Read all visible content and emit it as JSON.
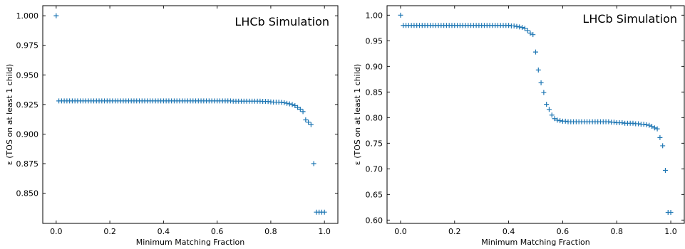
{
  "figure": {
    "marker_color": "#1f77b4",
    "frame_color": "#000000"
  },
  "chart_data": [
    {
      "type": "scatter",
      "marker": "plus",
      "annotation": "LHCb Simulation",
      "xlabel": "Minimum Matching Fraction",
      "ylabel": "ε (TOS on at least 1 child)",
      "xlim": [
        -0.05,
        1.05
      ],
      "ylim": [
        0.8245,
        1.0085
      ],
      "xticks": [
        0.0,
        0.2,
        0.4,
        0.6,
        0.8,
        1.0
      ],
      "xtick_labels": [
        "0.0",
        "0.2",
        "0.4",
        "0.6",
        "0.8",
        "1.0"
      ],
      "yticks": [
        0.85,
        0.875,
        0.9,
        0.925,
        0.95,
        0.975,
        1.0
      ],
      "ytick_labels": [
        "0.850",
        "0.875",
        "0.900",
        "0.925",
        "0.950",
        "0.975",
        "1.000"
      ],
      "grid": false,
      "series": [
        {
          "x": [
            0,
            0.01,
            0.02,
            0.03,
            0.04,
            0.05,
            0.06,
            0.07,
            0.08,
            0.09,
            0.1,
            0.11,
            0.12,
            0.13,
            0.14,
            0.15,
            0.16,
            0.17,
            0.18,
            0.19,
            0.2,
            0.21,
            0.22,
            0.23,
            0.24,
            0.25,
            0.26,
            0.27,
            0.28,
            0.29,
            0.3,
            0.31,
            0.32,
            0.33,
            0.34,
            0.35,
            0.36,
            0.37,
            0.38,
            0.39,
            0.4,
            0.41,
            0.42,
            0.43,
            0.44,
            0.45,
            0.46,
            0.47,
            0.48,
            0.49,
            0.5,
            0.51,
            0.52,
            0.53,
            0.54,
            0.55,
            0.56,
            0.57,
            0.58,
            0.59,
            0.6,
            0.61,
            0.62,
            0.63,
            0.64,
            0.65,
            0.66,
            0.67,
            0.68,
            0.69,
            0.7,
            0.71,
            0.72,
            0.73,
            0.74,
            0.75,
            0.76,
            0.77,
            0.78,
            0.79,
            0.8,
            0.81,
            0.82,
            0.83,
            0.84,
            0.85,
            0.86,
            0.87,
            0.88,
            0.89,
            0.9,
            0.91,
            0.92,
            0.93,
            0.94,
            0.95,
            0.96,
            0.97,
            0.98,
            0.99,
            1.0
          ],
          "y": [
            1.0,
            0.928,
            0.928,
            0.928,
            0.928,
            0.928,
            0.928,
            0.928,
            0.928,
            0.928,
            0.928,
            0.928,
            0.928,
            0.928,
            0.928,
            0.928,
            0.928,
            0.928,
            0.928,
            0.928,
            0.928,
            0.928,
            0.928,
            0.928,
            0.928,
            0.928,
            0.928,
            0.928,
            0.928,
            0.928,
            0.928,
            0.928,
            0.928,
            0.928,
            0.928,
            0.928,
            0.928,
            0.928,
            0.928,
            0.928,
            0.928,
            0.928,
            0.928,
            0.928,
            0.928,
            0.928,
            0.928,
            0.928,
            0.928,
            0.928,
            0.928,
            0.928,
            0.928,
            0.928,
            0.928,
            0.928,
            0.928,
            0.928,
            0.928,
            0.928,
            0.928,
            0.928,
            0.928,
            0.928,
            0.928,
            0.928,
            0.9278,
            0.9278,
            0.9278,
            0.9278,
            0.9278,
            0.9278,
            0.9278,
            0.9278,
            0.9278,
            0.9278,
            0.9278,
            0.9276,
            0.9276,
            0.9275,
            0.9272,
            0.927,
            0.927,
            0.927,
            0.9268,
            0.9265,
            0.926,
            0.9255,
            0.925,
            0.924,
            0.9225,
            0.921,
            0.919,
            0.912,
            0.91,
            0.908,
            0.875,
            0.834,
            0.834,
            0.834,
            0.834
          ]
        }
      ]
    },
    {
      "type": "scatter",
      "marker": "plus",
      "annotation": "LHCb Simulation",
      "xlabel": "Minimum Matching Fraction",
      "ylabel": "ε (TOS on at least 1 child)",
      "xlim": [
        -0.05,
        1.05
      ],
      "ylim": [
        0.5935,
        1.0185
      ],
      "xticks": [
        0.0,
        0.2,
        0.4,
        0.6,
        0.8,
        1.0
      ],
      "xtick_labels": [
        "0.0",
        "0.2",
        "0.4",
        "0.6",
        "0.8",
        "1.0"
      ],
      "yticks": [
        0.6,
        0.65,
        0.7,
        0.75,
        0.8,
        0.85,
        0.9,
        0.95,
        1.0
      ],
      "ytick_labels": [
        "0.60",
        "0.65",
        "0.70",
        "0.75",
        "0.80",
        "0.85",
        "0.90",
        "0.95",
        "1.00"
      ],
      "grid": false,
      "series": [
        {
          "x": [
            0,
            0.01,
            0.02,
            0.03,
            0.04,
            0.05,
            0.06,
            0.07,
            0.08,
            0.09,
            0.1,
            0.11,
            0.12,
            0.13,
            0.14,
            0.15,
            0.16,
            0.17,
            0.18,
            0.19,
            0.2,
            0.21,
            0.22,
            0.23,
            0.24,
            0.25,
            0.26,
            0.27,
            0.28,
            0.29,
            0.3,
            0.31,
            0.32,
            0.33,
            0.34,
            0.35,
            0.36,
            0.37,
            0.38,
            0.39,
            0.4,
            0.41,
            0.42,
            0.43,
            0.44,
            0.45,
            0.46,
            0.47,
            0.48,
            0.49,
            0.5,
            0.51,
            0.52,
            0.53,
            0.54,
            0.55,
            0.56,
            0.57,
            0.58,
            0.59,
            0.6,
            0.61,
            0.62,
            0.63,
            0.64,
            0.65,
            0.66,
            0.67,
            0.68,
            0.69,
            0.7,
            0.71,
            0.72,
            0.73,
            0.74,
            0.75,
            0.76,
            0.77,
            0.78,
            0.79,
            0.8,
            0.81,
            0.82,
            0.83,
            0.84,
            0.85,
            0.86,
            0.87,
            0.88,
            0.89,
            0.9,
            0.91,
            0.92,
            0.93,
            0.94,
            0.95,
            0.96,
            0.97,
            0.98,
            0.99,
            1.0
          ],
          "y": [
            1.0,
            0.98,
            0.98,
            0.98,
            0.98,
            0.98,
            0.98,
            0.98,
            0.98,
            0.98,
            0.98,
            0.98,
            0.98,
            0.98,
            0.98,
            0.98,
            0.98,
            0.98,
            0.98,
            0.98,
            0.98,
            0.98,
            0.98,
            0.98,
            0.98,
            0.98,
            0.98,
            0.98,
            0.98,
            0.98,
            0.98,
            0.98,
            0.98,
            0.98,
            0.98,
            0.98,
            0.98,
            0.98,
            0.98,
            0.98,
            0.98,
            0.979,
            0.979,
            0.978,
            0.977,
            0.976,
            0.974,
            0.97,
            0.965,
            0.962,
            0.928,
            0.893,
            0.868,
            0.849,
            0.826,
            0.816,
            0.805,
            0.798,
            0.795,
            0.794,
            0.793,
            0.793,
            0.792,
            0.792,
            0.792,
            0.792,
            0.792,
            0.792,
            0.792,
            0.792,
            0.792,
            0.792,
            0.792,
            0.792,
            0.792,
            0.792,
            0.792,
            0.792,
            0.791,
            0.791,
            0.79,
            0.79,
            0.79,
            0.789,
            0.789,
            0.789,
            0.789,
            0.788,
            0.788,
            0.787,
            0.787,
            0.786,
            0.785,
            0.783,
            0.78,
            0.778,
            0.761,
            0.745,
            0.697,
            0.615,
            0.615
          ]
        }
      ]
    }
  ]
}
